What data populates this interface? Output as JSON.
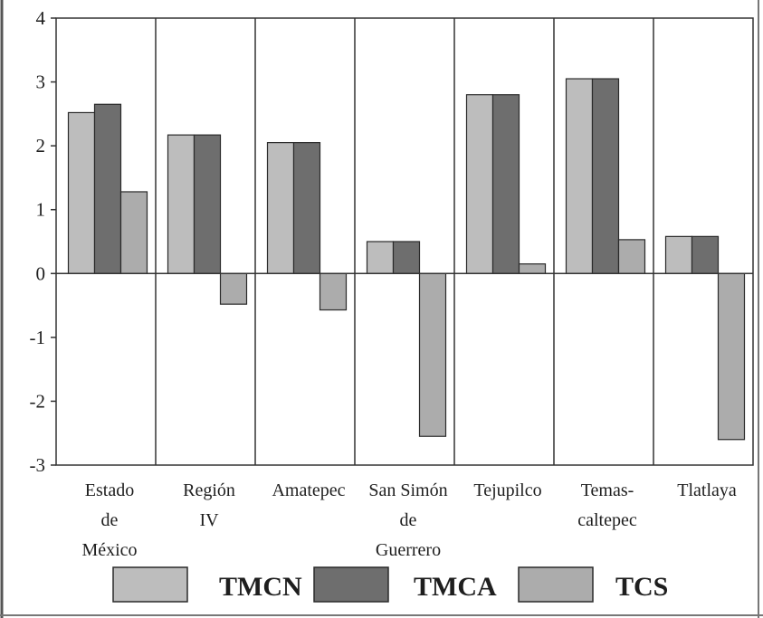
{
  "chart_data": {
    "type": "bar",
    "title": "",
    "xlabel": "",
    "ylabel": "",
    "ylim": [
      -3,
      4
    ],
    "yticks": [
      4,
      3,
      2,
      1,
      0,
      -1,
      -2,
      -3
    ],
    "ytick_labels": [
      "4",
      "3",
      "2",
      "1",
      "0",
      "-1",
      "-2",
      "-3"
    ],
    "grid": false,
    "legend_position": "bottom",
    "categories": [
      [
        "Estado",
        "de",
        "México"
      ],
      [
        "Región",
        "IV"
      ],
      [
        "Amatepec"
      ],
      [
        "San Simón",
        "de",
        "Guerrero"
      ],
      [
        "Tejupilco"
      ],
      [
        "Temas-",
        "caltepec"
      ],
      [
        "Tlatlaya"
      ]
    ],
    "series": [
      {
        "name": "TMCN",
        "color": "#bdbdbd",
        "values": [
          2.52,
          2.17,
          2.05,
          0.5,
          2.8,
          3.05,
          0.58
        ]
      },
      {
        "name": "TMCA",
        "color": "#6e6e6e",
        "values": [
          2.65,
          2.17,
          2.05,
          0.5,
          2.8,
          3.05,
          0.58
        ]
      },
      {
        "name": "TCS",
        "color": "#acacac",
        "values": [
          1.28,
          -0.48,
          -0.57,
          -2.55,
          0.15,
          0.53,
          -2.6
        ]
      }
    ]
  }
}
